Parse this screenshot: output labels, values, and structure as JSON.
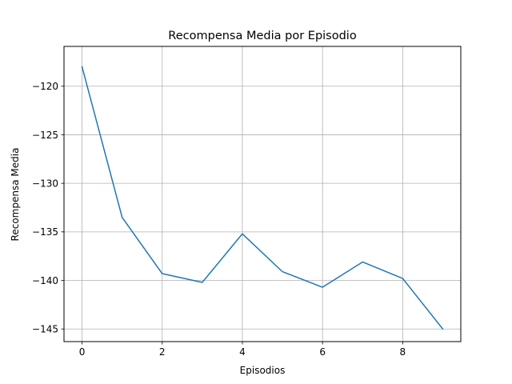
{
  "chart_data": {
    "type": "line",
    "title": "Recompensa Media por Episodio",
    "xlabel": "Episodios",
    "ylabel": "Recompensa Media",
    "x": [
      0,
      1,
      2,
      3,
      4,
      5,
      6,
      7,
      8,
      9
    ],
    "series": [
      {
        "values": [
          -118.0,
          -133.5,
          -139.3,
          -140.2,
          -135.2,
          -139.1,
          -140.7,
          -138.1,
          -139.8,
          -145.0
        ],
        "color": "#1f77b4"
      }
    ],
    "xlim": [
      -0.45,
      9.45
    ],
    "ylim": [
      -146.3,
      -115.9
    ],
    "x_ticks": [
      0,
      2,
      4,
      6,
      8
    ],
    "y_ticks": [
      -120,
      -125,
      -130,
      -135,
      -140,
      -145
    ],
    "x_tick_labels": [
      "0",
      "2",
      "4",
      "6",
      "8"
    ],
    "y_tick_labels": [
      "−120",
      "−125",
      "−130",
      "−135",
      "−140",
      "−145"
    ],
    "grid": true,
    "grid_color": "#b0b0b0",
    "legend": "none"
  }
}
